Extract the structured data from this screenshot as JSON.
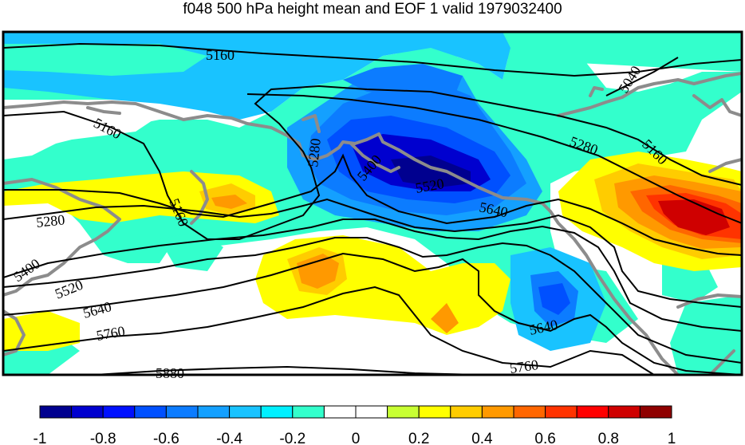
{
  "title": "f048 500 hPa height mean and EOF 1 valid 1979032400",
  "map": {
    "contour_labels": [
      "5160",
      "5040",
      "5160",
      "5280",
      "5160",
      "5280",
      "5400",
      "5520",
      "5640",
      "5280",
      "5160",
      "5400",
      "5520",
      "5640",
      "5760",
      "5880",
      "5640",
      "5760"
    ],
    "colors": {
      "coastline": "#8c8c8c",
      "contour": "#000000"
    }
  },
  "colorbar": {
    "colors": [
      "#00008f",
      "#0000cf",
      "#0010ff",
      "#0050ff",
      "#0c7cff",
      "#14a0ff",
      "#19c3ff",
      "#00f0ff",
      "#33ffcc",
      "#ffffff",
      "#ffffff",
      "#c8ff33",
      "#ffff00",
      "#ffcc00",
      "#ff9900",
      "#ff6600",
      "#ff3300",
      "#ff0000",
      "#cf0000",
      "#8f0000"
    ],
    "tick_labels": [
      "-1",
      "-0.8",
      "-0.6",
      "-0.4",
      "-0.2",
      "0",
      "0.2",
      "0.4",
      "0.6",
      "0.8",
      "1"
    ]
  }
}
